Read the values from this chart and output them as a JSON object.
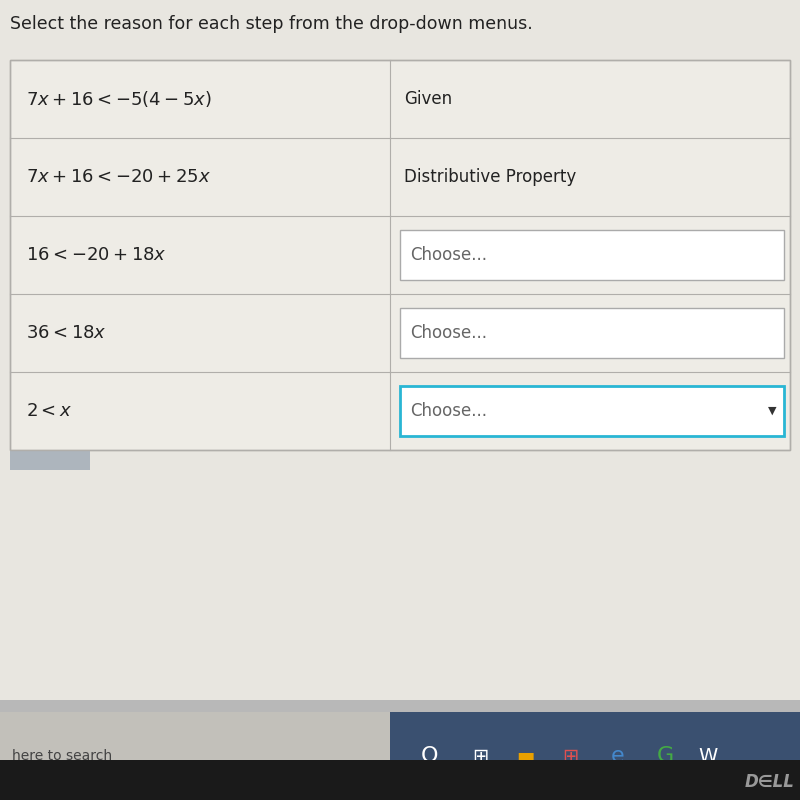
{
  "title": "Select the reason for each step from the drop-down menus.",
  "title_fontsize": 12.5,
  "background_color": "#e8e6e0",
  "cell_bg": "#eeece6",
  "rows": [
    {
      "left_math": "$7x + 16 < -5(4 - 5x)$",
      "right_text": "Given",
      "right_is_dropdown": false,
      "dropdown_highlighted": false
    },
    {
      "left_math": "$7x + 16 < -20 + 25x$",
      "right_text": "Distributive Property",
      "right_is_dropdown": false,
      "dropdown_highlighted": false
    },
    {
      "left_math": "$16 < -20 + 18x$",
      "right_text": "Choose...",
      "right_is_dropdown": true,
      "dropdown_highlighted": false
    },
    {
      "left_math": "$36 < 18x$",
      "right_text": "Choose...",
      "right_is_dropdown": true,
      "dropdown_highlighted": false
    },
    {
      "left_math": "$2 < x$",
      "right_text": "Choose...",
      "right_is_dropdown": true,
      "dropdown_highlighted": true
    }
  ],
  "dropdown_border_normal": "#aaaaaa",
  "dropdown_border_highlighted": "#29b6d4",
  "dropdown_bg": "#f8f7f3",
  "text_color": "#222222",
  "math_fontsize": 13,
  "reason_fontsize": 12,
  "taskbar_left_color": "#c8c8c8",
  "taskbar_right_color": "#3a5a8a",
  "taskbar_dark_color": "#111111",
  "search_bar_color": "#d0cfc8",
  "search_text_color": "#444444",
  "table_border_color": "#b0aeaa",
  "col_divider_color": "#b0aeaa"
}
